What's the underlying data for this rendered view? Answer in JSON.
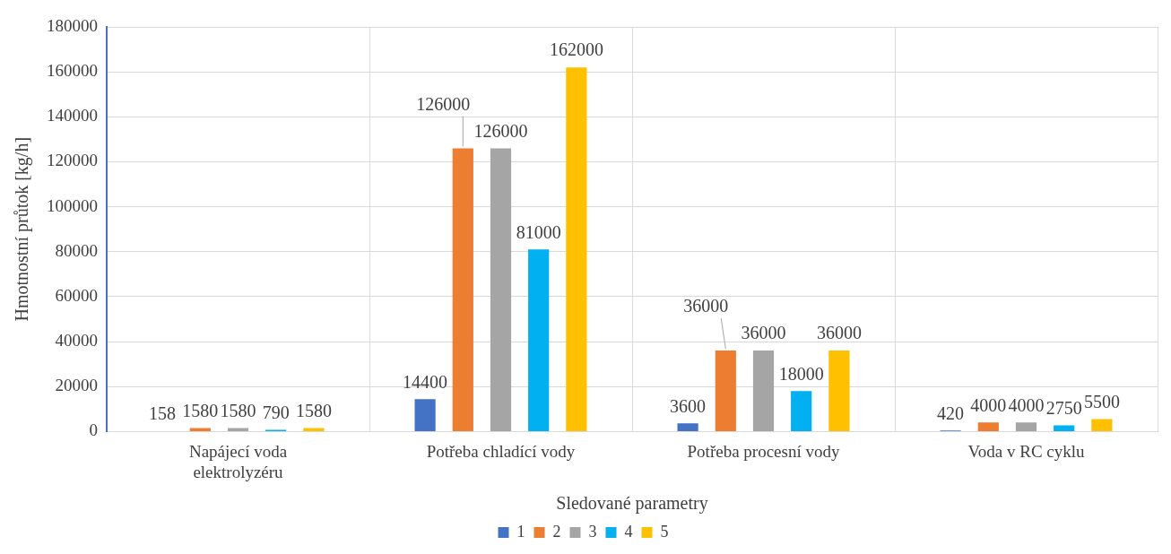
{
  "chart_data": {
    "type": "bar",
    "xlabel": "Sledované parametry",
    "ylabel": "Hmotnostní průtok [kg/h]",
    "categories": [
      [
        "Napájecí voda",
        "elektrolyzéru"
      ],
      "Potřeba chladící vody",
      "Potřeba procesní vody",
      "Voda v RC cyklu"
    ],
    "series": [
      {
        "name": "1",
        "color": "#4472c4",
        "values": [
          158,
          14400,
          3600,
          420
        ]
      },
      {
        "name": "2",
        "color": "#ed7d31",
        "values": [
          1580,
          126000,
          36000,
          4000
        ]
      },
      {
        "name": "3",
        "color": "#a5a5a5",
        "values": [
          1580,
          126000,
          36000,
          4000
        ]
      },
      {
        "name": "4",
        "color": "#00b0f0",
        "values": [
          790,
          81000,
          18000,
          2750
        ]
      },
      {
        "name": "5",
        "color": "#ffc000",
        "values": [
          1580,
          162000,
          36000,
          5500
        ]
      }
    ],
    "ylim": [
      0,
      180000
    ],
    "yticks": [
      0,
      20000,
      40000,
      60000,
      80000,
      100000,
      120000,
      140000,
      160000,
      180000
    ],
    "grid": true,
    "legend": "bottom",
    "data_labels": true
  }
}
